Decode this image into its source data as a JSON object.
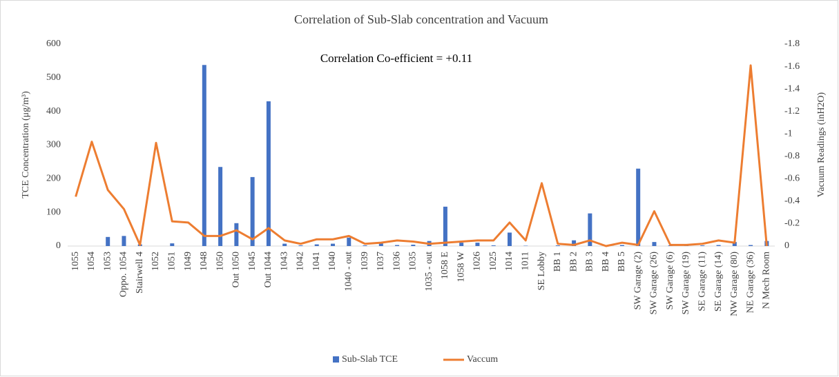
{
  "chart_data": {
    "type": "bar_line",
    "title": "Correlation of Sub-Slab concentration and Vacuum",
    "annotation": "Correlation Co-efficient = +0.11",
    "y_label": "TCE Concentration (μg/m³)",
    "y2_label": "Vacuum Readings (inH2O)",
    "categories": [
      "1055",
      "1054",
      "1053",
      "Oppo. 1054",
      "Stairwell 4",
      "1052",
      "1051",
      "1049",
      "1048",
      "1050",
      "Out 1050",
      "1045",
      "Out 1044",
      "1043",
      "1042",
      "1041",
      "1040",
      "1040 - out",
      "1039",
      "1037",
      "1036",
      "1035",
      "1035 - out",
      "1058 E",
      "1058 W",
      "1026",
      "1025",
      "1014",
      "1011",
      "SE Lobby",
      "BB 1",
      "BB 2",
      "BB 3",
      "BB 4",
      "BB 5",
      "SW Garage (2)",
      "SW Garage (26)",
      "SW Garage (6)",
      "SW Garage (19)",
      "SE Garage (11)",
      "SE Garage (14)",
      "NW Garage (80)",
      "NE Garage (36)",
      "N Mech Room"
    ],
    "series": [
      {
        "name": "Sub-Slab TCE",
        "color": "#4472c4",
        "kind": "bar",
        "values": [
          0,
          0,
          27,
          30,
          5,
          0,
          8,
          0,
          538,
          235,
          68,
          205,
          430,
          7,
          2,
          5,
          7,
          25,
          2,
          8,
          3,
          4,
          15,
          117,
          10,
          10,
          2,
          40,
          1,
          0,
          2,
          17,
          97,
          2,
          3,
          230,
          12,
          2,
          2,
          2,
          3,
          12,
          3,
          15
        ]
      },
      {
        "name": "Vaccum",
        "color": "#ed7d31",
        "kind": "line",
        "axis": "y2",
        "values": [
          -0.44,
          -0.93,
          -0.5,
          -0.33,
          -0.01,
          -0.92,
          -0.22,
          -0.21,
          -0.09,
          -0.09,
          -0.14,
          -0.06,
          -0.16,
          -0.05,
          -0.02,
          -0.06,
          -0.06,
          -0.09,
          -0.02,
          -0.03,
          -0.05,
          -0.04,
          -0.02,
          -0.03,
          -0.04,
          -0.05,
          -0.05,
          -0.21,
          -0.05,
          -0.56,
          -0.02,
          -0.01,
          -0.05,
          0,
          -0.03,
          -0.01,
          -0.31,
          -0.01,
          -0.01,
          -0.02,
          -0.05,
          -0.03,
          -1.61,
          0
        ]
      }
    ],
    "ylim": [
      0,
      600
    ],
    "yticks": [
      0,
      100,
      200,
      300,
      400,
      500,
      600
    ],
    "y2lim": [
      0,
      -1.8
    ],
    "y2ticks": [
      0,
      -0.2,
      -0.4,
      -0.6,
      -0.8,
      -1,
      -1.2,
      -1.4,
      -1.6,
      -1.8
    ],
    "grid": false,
    "legend": "bottom"
  }
}
